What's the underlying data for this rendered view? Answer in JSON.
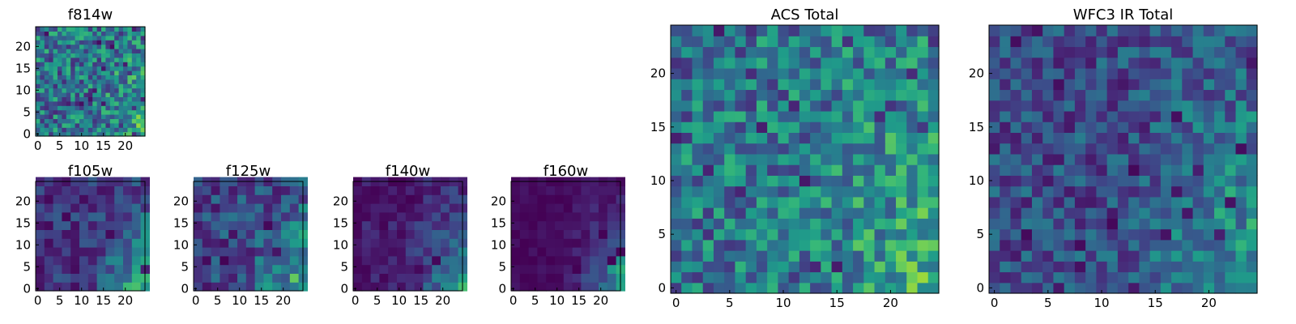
{
  "colors": {
    "viridis": [
      "#440154",
      "#482878",
      "#3e4989",
      "#31688e",
      "#26828e",
      "#1f9e89",
      "#35b779",
      "#6ece58",
      "#b5de2b",
      "#fde725"
    ],
    "frame": "#000000",
    "background": "#ffffff"
  },
  "chart_data": [
    {
      "id": "f814w",
      "type": "heatmap",
      "title": "f814w",
      "grid_size": 25,
      "cell": 1,
      "seed": 11,
      "noise": 0.55,
      "gradient": 0.45,
      "gamma": 1.0,
      "xlim": [
        0,
        25
      ],
      "ylim": [
        0,
        25
      ],
      "xticks": [
        0,
        5,
        10,
        15,
        20
      ],
      "yticks": [
        0,
        5,
        10,
        15,
        20
      ],
      "xtick_labels": [
        "0",
        "5",
        "10",
        "15",
        "20"
      ],
      "ytick_labels": [
        "0",
        "5",
        "10",
        "15",
        "20"
      ],
      "colormap": "viridis"
    },
    {
      "id": "f105w",
      "type": "heatmap",
      "title": "f105w",
      "grid_size": 25,
      "cell": 2,
      "seed": 23,
      "noise": 0.35,
      "gradient": 0.75,
      "gamma": 1.4,
      "xlim": [
        0,
        25
      ],
      "ylim": [
        0,
        25
      ],
      "xticks": [
        0,
        5,
        10,
        15,
        20
      ],
      "yticks": [
        0,
        5,
        10,
        15,
        20
      ],
      "xtick_labels": [
        "0",
        "5",
        "10",
        "15",
        "20"
      ],
      "ytick_labels": [
        "0",
        "5",
        "10",
        "15",
        "20"
      ],
      "colormap": "viridis"
    },
    {
      "id": "f125w",
      "type": "heatmap",
      "title": "f125w",
      "grid_size": 25,
      "cell": 2,
      "seed": 37,
      "noise": 0.4,
      "gradient": 0.7,
      "gamma": 1.3,
      "xlim": [
        0,
        25
      ],
      "ylim": [
        0,
        25
      ],
      "xticks": [
        0,
        5,
        10,
        15,
        20
      ],
      "yticks": [
        0,
        5,
        10,
        15,
        20
      ],
      "xtick_labels": [
        "0",
        "5",
        "10",
        "15",
        "20"
      ],
      "ytick_labels": [
        "0",
        "5",
        "10",
        "15",
        "20"
      ],
      "colormap": "viridis"
    },
    {
      "id": "f140w",
      "type": "heatmap",
      "title": "f140w",
      "grid_size": 25,
      "cell": 2,
      "seed": 51,
      "noise": 0.3,
      "gradient": 0.85,
      "gamma": 1.7,
      "xlim": [
        0,
        25
      ],
      "ylim": [
        0,
        25
      ],
      "xticks": [
        0,
        5,
        10,
        15,
        20
      ],
      "yticks": [
        0,
        5,
        10,
        15,
        20
      ],
      "xtick_labels": [
        "0",
        "5",
        "10",
        "15",
        "20"
      ],
      "ytick_labels": [
        "0",
        "5",
        "10",
        "15",
        "20"
      ],
      "colormap": "viridis"
    },
    {
      "id": "f160w",
      "type": "heatmap",
      "title": "f160w",
      "grid_size": 25,
      "cell": 2,
      "seed": 67,
      "noise": 0.25,
      "gradient": 0.9,
      "gamma": 2.2,
      "xlim": [
        0,
        25
      ],
      "ylim": [
        0,
        25
      ],
      "xticks": [
        0,
        5,
        10,
        15,
        20
      ],
      "yticks": [
        0,
        5,
        10,
        15,
        20
      ],
      "xtick_labels": [
        "0",
        "5",
        "10",
        "15",
        "20"
      ],
      "ytick_labels": [
        "0",
        "5",
        "10",
        "15",
        "20"
      ],
      "colormap": "viridis"
    },
    {
      "id": "acs_total",
      "type": "heatmap",
      "title": "ACS Total",
      "grid_size": 25,
      "cell": 1,
      "seed": 79,
      "noise": 0.5,
      "gradient": 0.5,
      "gamma": 0.9,
      "xlim": [
        0,
        25
      ],
      "ylim": [
        0,
        25
      ],
      "xticks": [
        0,
        5,
        10,
        15,
        20
      ],
      "yticks": [
        0,
        5,
        10,
        15,
        20
      ],
      "xtick_labels": [
        "0",
        "5",
        "10",
        "15",
        "20"
      ],
      "ytick_labels": [
        "0",
        "5",
        "10",
        "15",
        "20"
      ],
      "colormap": "viridis"
    },
    {
      "id": "wfc3_ir_total",
      "type": "heatmap",
      "title": "WFC3 IR Total",
      "grid_size": 25,
      "cell": 1,
      "seed": 97,
      "noise": 0.4,
      "gradient": 0.6,
      "gamma": 1.3,
      "xlim": [
        0,
        25
      ],
      "ylim": [
        0,
        25
      ],
      "xticks": [
        0,
        5,
        10,
        15,
        20
      ],
      "yticks": [
        0,
        5,
        10,
        15,
        20
      ],
      "xtick_labels": [
        "0",
        "5",
        "10",
        "15",
        "20"
      ],
      "ytick_labels": [
        "0",
        "5",
        "10",
        "15",
        "20"
      ],
      "colormap": "viridis"
    }
  ]
}
